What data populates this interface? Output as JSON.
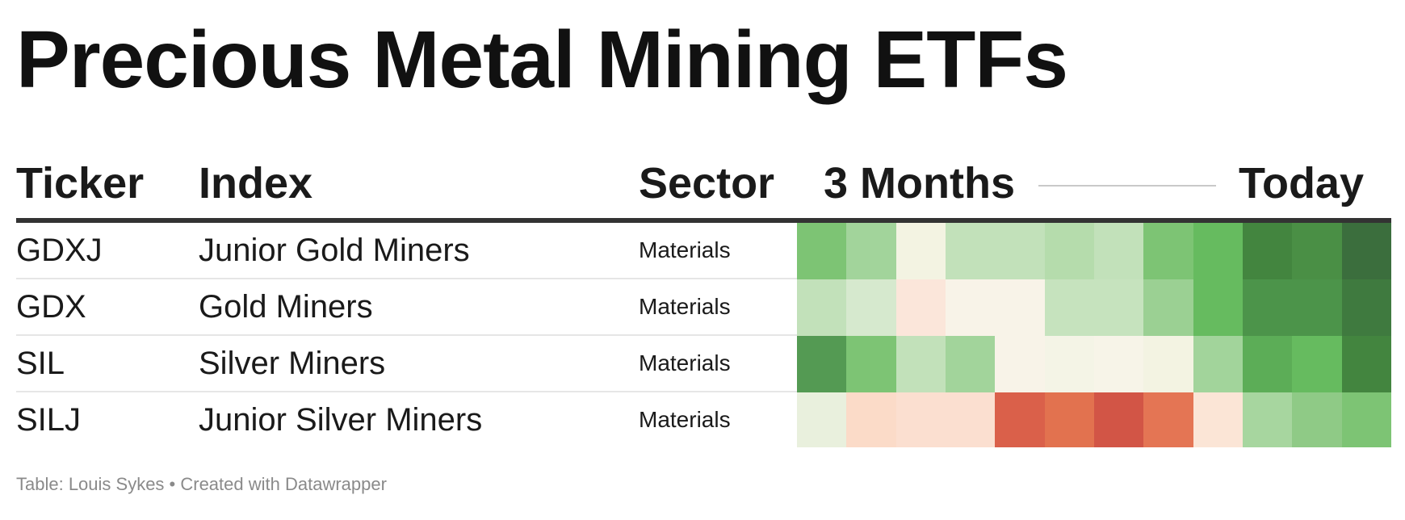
{
  "title": "Precious Metal Mining ETFs",
  "footer": "Table: Louis Sykes • Created with Datawrapper",
  "headers": {
    "ticker": "Ticker",
    "index": "Index",
    "sector": "Sector",
    "sparkline_start": "3 Months",
    "sparkline_end": "Today"
  },
  "chart_data": {
    "type": "table",
    "columns": [
      "Ticker",
      "Index",
      "Sector",
      "3 Months",
      "Today"
    ],
    "rows": [
      {
        "ticker": "GDXJ",
        "index": "Junior Gold Miners",
        "sector": "Materials",
        "heat_colors": [
          "#7dc474",
          "#a2d49b",
          "#f3f3e2",
          "#c2e1ba",
          "#c2e1ba",
          "#b5dcac",
          "#c2e1ba",
          "#7dc474",
          "#66bb5f",
          "#43853f",
          "#4a8f45",
          "#3b6e3d"
        ]
      },
      {
        "ticker": "GDX",
        "index": "Gold Miners",
        "sector": "Materials",
        "heat_colors": [
          "#c2e1ba",
          "#d6e9ce",
          "#fbe6da",
          "#f8f3e8",
          "#f8f3e8",
          "#c6e3be",
          "#c6e3be",
          "#9bd093",
          "#66bb5f",
          "#4c944a",
          "#4c944a",
          "#3f7a3f"
        ]
      },
      {
        "ticker": "SIL",
        "index": "Silver Miners",
        "sector": "Materials",
        "heat_colors": [
          "#549a53",
          "#7dc474",
          "#c2e1ba",
          "#a2d49b",
          "#f8f3e8",
          "#f4f4e6",
          "#f7f4e8",
          "#f3f3e2",
          "#a2d49b",
          "#5cad57",
          "#66bb5f",
          "#43853f"
        ]
      },
      {
        "ticker": "SILJ",
        "index": "Junior Silver Miners",
        "sector": "Materials",
        "heat_colors": [
          "#e9f0dd",
          "#fbdbc8",
          "#fbdfd0",
          "#fbdfd0",
          "#da604a",
          "#e2724f",
          "#d25546",
          "#e47554",
          "#fbe5d6",
          "#a7d69f",
          "#8fca86",
          "#7dc474"
        ]
      }
    ]
  }
}
